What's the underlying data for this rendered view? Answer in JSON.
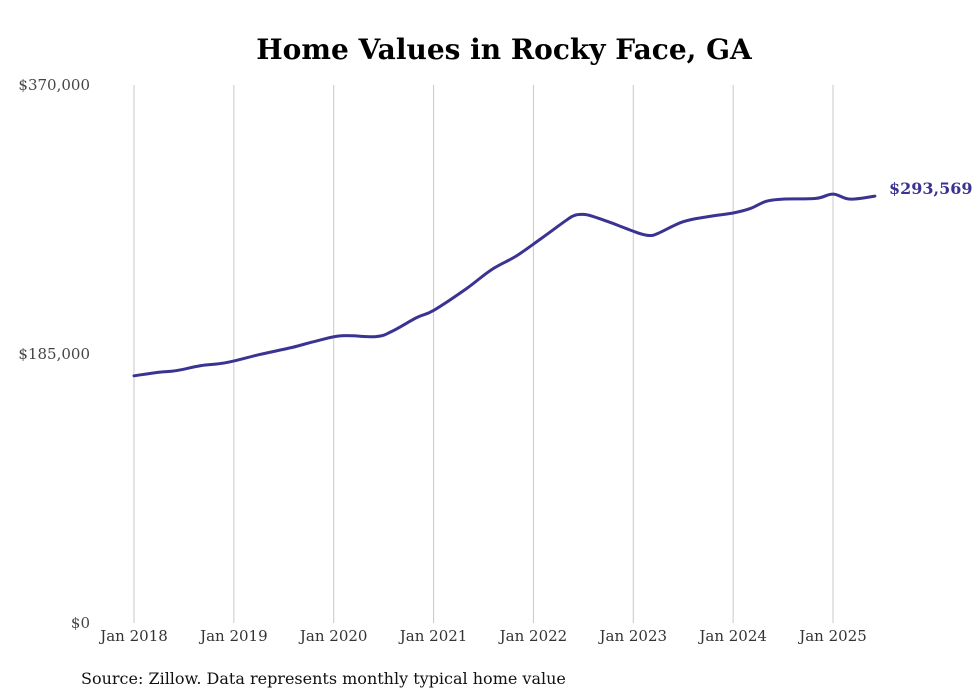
{
  "chart_data": {
    "type": "line",
    "title": "Home Values in Rocky Face, GA",
    "source": "Source: Zillow. Data represents monthly typical home value",
    "xlabel": "",
    "ylabel": "",
    "ylim": [
      0,
      370000
    ],
    "y_ticks": [
      0,
      185000,
      370000
    ],
    "y_tick_labels": [
      "$0",
      "$185,000",
      "$370,000"
    ],
    "x_tick_labels": [
      "Jan 2018",
      "Jan 2019",
      "Jan 2020",
      "Jan 2021",
      "Jan 2022",
      "Jan 2023",
      "Jan 2024",
      "Jan 2025"
    ],
    "x_tick_positions": [
      2018,
      2019,
      2020,
      2021,
      2022,
      2023,
      2024,
      2025
    ],
    "xlim": [
      2017.5,
      2025.75
    ],
    "grid": "vertical",
    "series": [
      {
        "name": "Rocky Face, GA",
        "color": "#3a3391",
        "x": [
          2018.0,
          2018.25,
          2018.42,
          2018.67,
          2018.92,
          2019.25,
          2019.58,
          2019.83,
          2020.08,
          2020.42,
          2020.58,
          2020.83,
          2021.0,
          2021.33,
          2021.58,
          2021.83,
          2022.08,
          2022.33,
          2022.42,
          2022.5,
          2022.58,
          2022.75,
          2022.92,
          2023.08,
          2023.17,
          2023.25,
          2023.5,
          2023.75,
          2024.0,
          2024.17,
          2024.33,
          2024.5,
          2024.83,
          2025.0,
          2025.17,
          2025.42
        ],
        "values": [
          170000,
          172500,
          173500,
          177000,
          179000,
          184500,
          189500,
          194000,
          197500,
          197000,
          200500,
          210000,
          215000,
          230000,
          243000,
          252500,
          264500,
          277000,
          280500,
          281000,
          280000,
          276000,
          271500,
          267500,
          266500,
          268000,
          276000,
          279500,
          282000,
          285000,
          290000,
          291500,
          292000,
          295000,
          291500,
          293569
        ]
      }
    ],
    "end_label": "$293,569"
  }
}
